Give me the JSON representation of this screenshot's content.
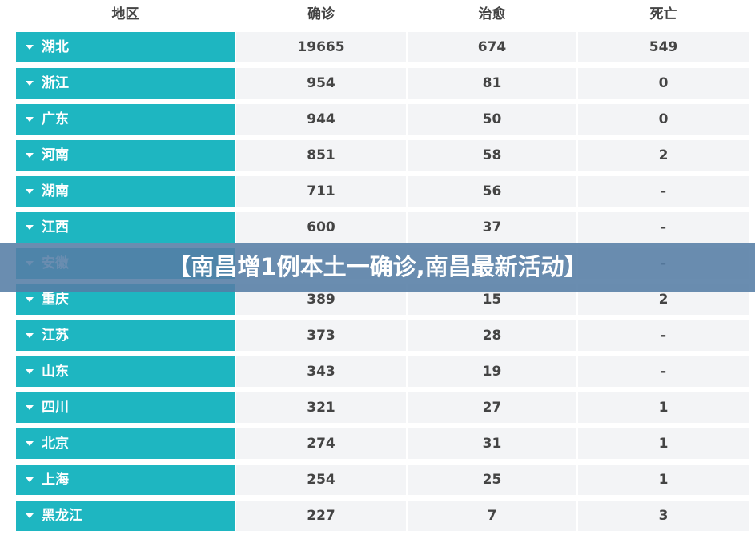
{
  "header": {
    "columns": [
      "地区",
      "确诊",
      "治愈",
      "死亡"
    ]
  },
  "table": {
    "rows": [
      {
        "region": "湖北",
        "confirmed": 19665,
        "cured": 674,
        "deaths": 549
      },
      {
        "region": "浙江",
        "confirmed": 954,
        "cured": 81,
        "deaths": 0
      },
      {
        "region": "广东",
        "confirmed": 944,
        "cured": 50,
        "deaths": 0
      },
      {
        "region": "河南",
        "confirmed": 851,
        "cured": 58,
        "deaths": 2
      },
      {
        "region": "湖南",
        "confirmed": 711,
        "cured": 56,
        "deaths": "-"
      },
      {
        "region": "江西",
        "confirmed": 600,
        "cured": 37,
        "deaths": "-"
      },
      {
        "region": "安徽",
        "deaths": "-"
      },
      {
        "region": "重庆",
        "confirmed": 389,
        "cured": 15,
        "deaths": 2
      },
      {
        "region": "江苏",
        "confirmed": 373,
        "cured": 28,
        "deaths": "-"
      },
      {
        "region": "山东",
        "confirmed": 343,
        "cured": 19,
        "deaths": "-"
      },
      {
        "region": "四川",
        "confirmed": 321,
        "cured": 27,
        "deaths": 1
      },
      {
        "region": "北京",
        "confirmed": 274,
        "cured": 31,
        "deaths": 1
      },
      {
        "region": "上海",
        "confirmed": 254,
        "cured": 25,
        "deaths": 1
      },
      {
        "region": "黑龙江",
        "confirmed": 227,
        "cured": 7,
        "deaths": 3
      }
    ]
  },
  "banner": {
    "text": "【南昌增1例本土一确诊,南昌最新活动】"
  }
}
